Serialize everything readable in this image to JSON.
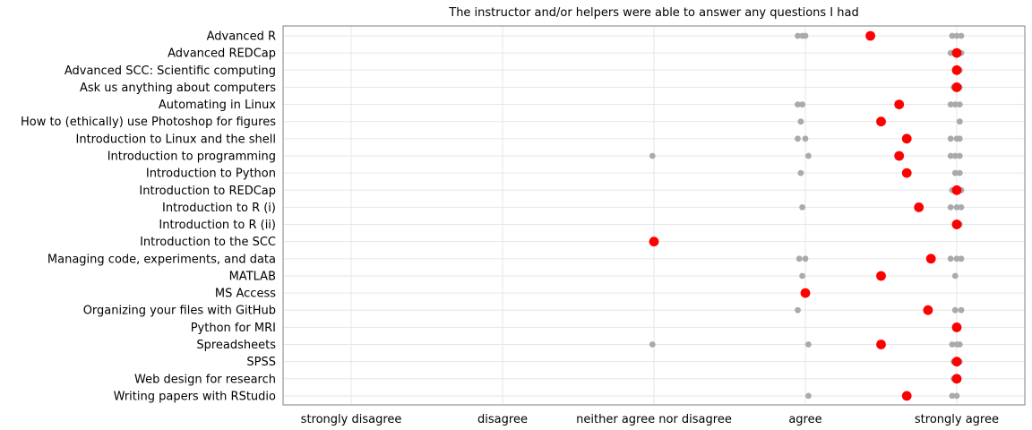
{
  "chart_data": {
    "type": "scatter",
    "title": "The instructor and/or helpers were able to answer any questions I had",
    "x_categories": [
      "strongly disagree",
      "disagree",
      "neither agree nor disagree",
      "agree",
      "strongly agree"
    ],
    "courses": [
      "Advanced R",
      "Advanced REDCap",
      "Advanced SCC: Scientific computing",
      "Ask us anything about computers",
      "Automating in Linux",
      "How to (ethically) use Photoshop for figures",
      "Introduction to Linux and the shell",
      "Introduction to programming",
      "Introduction to Python",
      "Introduction to REDCap",
      "Introduction to R (i)",
      "Introduction to R (ii)",
      "Introduction to the SCC",
      "Managing code, experiments, and data",
      "MATLAB",
      "MS Access",
      "Organizing your files with GitHub",
      "Python for MRI",
      "Spreadsheets",
      "SPSS",
      "Web design for research",
      "Writing papers with RStudio"
    ],
    "series": [
      {
        "role": "individual",
        "color": "#aaaaaa",
        "points": [
          {
            "course": "Advanced R",
            "x": 3.95
          },
          {
            "course": "Advanced R",
            "x": 3.98
          },
          {
            "course": "Advanced R",
            "x": 4.0
          },
          {
            "course": "Advanced R",
            "x": 4.97
          },
          {
            "course": "Advanced R",
            "x": 5.0
          },
          {
            "course": "Advanced R",
            "x": 5.03
          },
          {
            "course": "Advanced REDCap",
            "x": 4.96
          },
          {
            "course": "Advanced REDCap",
            "x": 5.0
          },
          {
            "course": "Advanced REDCap",
            "x": 5.03
          },
          {
            "course": "Advanced SCC: Scientific computing",
            "x": 4.99
          },
          {
            "course": "Advanced SCC: Scientific computing",
            "x": 5.02
          },
          {
            "course": "Ask us anything about computers",
            "x": 4.98
          },
          {
            "course": "Ask us anything about computers",
            "x": 5.02
          },
          {
            "course": "Automating in Linux",
            "x": 3.95
          },
          {
            "course": "Automating in Linux",
            "x": 3.98
          },
          {
            "course": "Automating in Linux",
            "x": 4.96
          },
          {
            "course": "Automating in Linux",
            "x": 4.99
          },
          {
            "course": "Automating in Linux",
            "x": 5.02
          },
          {
            "course": "How to (ethically) use Photoshop for figures",
            "x": 3.97
          },
          {
            "course": "How to (ethically) use Photoshop for figures",
            "x": 5.02
          },
          {
            "course": "Introduction to Linux and the shell",
            "x": 3.95
          },
          {
            "course": "Introduction to Linux and the shell",
            "x": 4.0
          },
          {
            "course": "Introduction to Linux and the shell",
            "x": 4.96
          },
          {
            "course": "Introduction to Linux and the shell",
            "x": 5.0
          },
          {
            "course": "Introduction to Linux and the shell",
            "x": 5.02
          },
          {
            "course": "Introduction to programming",
            "x": 2.99
          },
          {
            "course": "Introduction to programming",
            "x": 4.02
          },
          {
            "course": "Introduction to programming",
            "x": 4.96
          },
          {
            "course": "Introduction to programming",
            "x": 4.99
          },
          {
            "course": "Introduction to programming",
            "x": 5.02
          },
          {
            "course": "Introduction to Python",
            "x": 3.97
          },
          {
            "course": "Introduction to Python",
            "x": 4.99
          },
          {
            "course": "Introduction to Python",
            "x": 5.02
          },
          {
            "course": "Introduction to REDCap",
            "x": 4.97
          },
          {
            "course": "Introduction to REDCap",
            "x": 5.0
          },
          {
            "course": "Introduction to REDCap",
            "x": 5.03
          },
          {
            "course": "Introduction to R (i)",
            "x": 3.98
          },
          {
            "course": "Introduction to R (i)",
            "x": 4.96
          },
          {
            "course": "Introduction to R (i)",
            "x": 5.0
          },
          {
            "course": "Introduction to R (i)",
            "x": 5.03
          },
          {
            "course": "Introduction to R (ii)",
            "x": 4.99
          },
          {
            "course": "Introduction to R (ii)",
            "x": 5.02
          },
          {
            "course": "Managing code, experiments, and data",
            "x": 3.96
          },
          {
            "course": "Managing code, experiments, and data",
            "x": 4.0
          },
          {
            "course": "Managing code, experiments, and data",
            "x": 4.96
          },
          {
            "course": "Managing code, experiments, and data",
            "x": 5.0
          },
          {
            "course": "Managing code, experiments, and data",
            "x": 5.03
          },
          {
            "course": "MATLAB",
            "x": 3.98
          },
          {
            "course": "MATLAB",
            "x": 4.99
          },
          {
            "course": "Organizing your files with GitHub",
            "x": 3.95
          },
          {
            "course": "Organizing your files with GitHub",
            "x": 4.99
          },
          {
            "course": "Organizing your files with GitHub",
            "x": 5.03
          },
          {
            "course": "Spreadsheets",
            "x": 2.99
          },
          {
            "course": "Spreadsheets",
            "x": 4.02
          },
          {
            "course": "Spreadsheets",
            "x": 4.97
          },
          {
            "course": "Spreadsheets",
            "x": 5.0
          },
          {
            "course": "Spreadsheets",
            "x": 5.02
          },
          {
            "course": "SPSS",
            "x": 4.98
          },
          {
            "course": "SPSS",
            "x": 5.02
          },
          {
            "course": "Web design for research",
            "x": 4.98
          },
          {
            "course": "Web design for research",
            "x": 5.01
          },
          {
            "course": "Writing papers with RStudio",
            "x": 4.02
          },
          {
            "course": "Writing papers with RStudio",
            "x": 4.97
          },
          {
            "course": "Writing papers with RStudio",
            "x": 5.0
          }
        ]
      },
      {
        "role": "mean",
        "color": "#ff0000",
        "points": [
          {
            "course": "Advanced R",
            "x": 4.43
          },
          {
            "course": "Advanced REDCap",
            "x": 5.0
          },
          {
            "course": "Advanced SCC: Scientific computing",
            "x": 5.0
          },
          {
            "course": "Ask us anything about computers",
            "x": 5.0
          },
          {
            "course": "Automating in Linux",
            "x": 4.62
          },
          {
            "course": "How to (ethically) use Photoshop for figures",
            "x": 4.5
          },
          {
            "course": "Introduction to Linux and the shell",
            "x": 4.67
          },
          {
            "course": "Introduction to programming",
            "x": 4.62
          },
          {
            "course": "Introduction to Python",
            "x": 4.67
          },
          {
            "course": "Introduction to REDCap",
            "x": 5.0
          },
          {
            "course": "Introduction to R (i)",
            "x": 4.75
          },
          {
            "course": "Introduction to R (ii)",
            "x": 5.0
          },
          {
            "course": "Introduction to the SCC",
            "x": 3.0
          },
          {
            "course": "Managing code, experiments, and data",
            "x": 4.83
          },
          {
            "course": "MATLAB",
            "x": 4.5
          },
          {
            "course": "MS Access",
            "x": 4.0
          },
          {
            "course": "Organizing your files with GitHub",
            "x": 4.81
          },
          {
            "course": "Python for MRI",
            "x": 5.0
          },
          {
            "course": "Spreadsheets",
            "x": 4.5
          },
          {
            "course": "SPSS",
            "x": 5.0
          },
          {
            "course": "Web design for research",
            "x": 5.0
          },
          {
            "course": "Writing papers with RStudio",
            "x": 4.67
          }
        ]
      }
    ],
    "xlim": [
      0.55,
      5.45
    ],
    "grid": true,
    "legend": "none",
    "colors": {
      "panel_border": "#7f7f7f",
      "grid": "#e6e6e6",
      "individual": "#aaaaaa",
      "mean": "#ff0000"
    }
  }
}
